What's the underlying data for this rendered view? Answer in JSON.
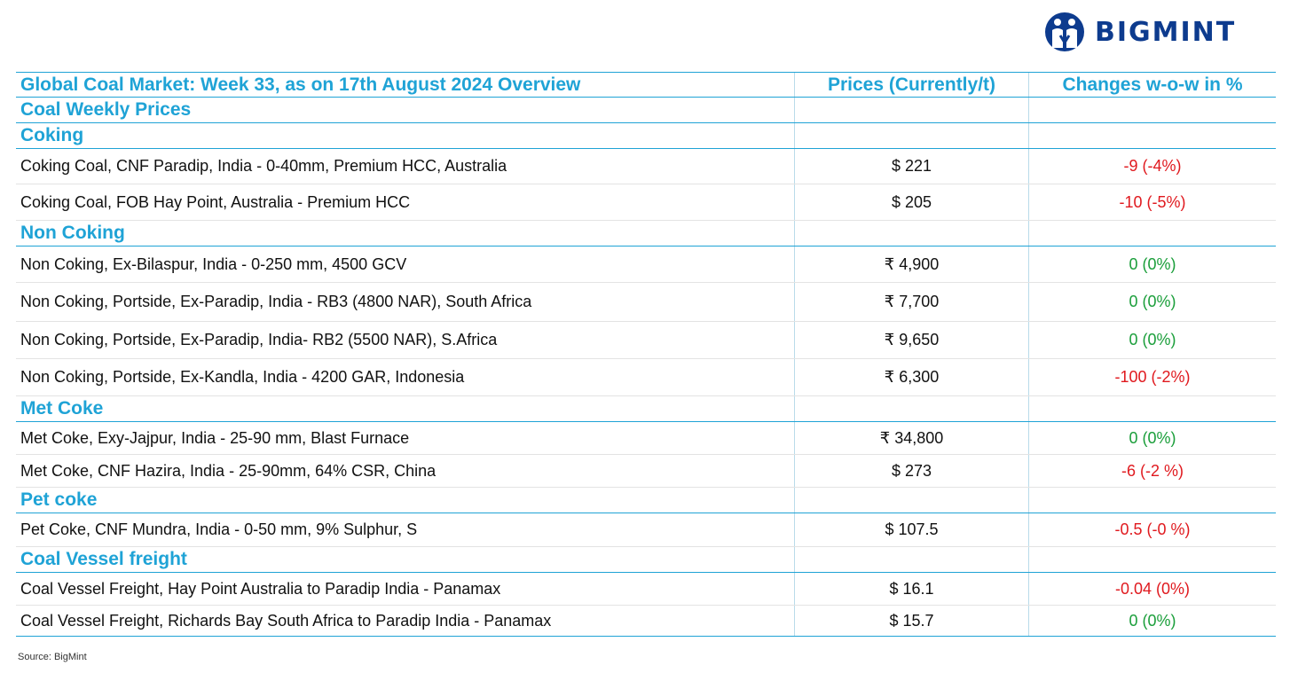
{
  "brand": {
    "name": "BIGMINT",
    "logo_icon": "bigmint-people-icon"
  },
  "table": {
    "header": {
      "title": "Global Coal Market: Week 33, as on 17th August 2024 Overview",
      "price_col": "Prices (Currently/t)",
      "change_col": "Changes w-o-w in %"
    },
    "rows": [
      {
        "kind": "section",
        "label": "Coal Weekly Prices"
      },
      {
        "kind": "section",
        "label": "Coking"
      },
      {
        "kind": "data",
        "name": "Coking Coal, CNF Paradip, India - 0-40mm, Premium HCC, Australia",
        "price": "$ 221",
        "change": "-9 (-4%)",
        "dir": "neg"
      },
      {
        "kind": "data",
        "name": "Coking Coal, FOB Hay Point, Australia - Premium HCC",
        "price": "$ 205",
        "change": "-10 (-5%)",
        "dir": "neg"
      },
      {
        "kind": "section",
        "label": "Non Coking"
      },
      {
        "kind": "data",
        "name": "Non Coking, Ex-Bilaspur, India - 0-250 mm, 4500 GCV",
        "price": "₹ 4,900",
        "change": "0 (0%)",
        "dir": "zero"
      },
      {
        "kind": "data",
        "name": "Non Coking, Portside, Ex-Paradip, India - RB3 (4800 NAR), South Africa",
        "price": "₹ 7,700",
        "change": "0 (0%)",
        "dir": "zero"
      },
      {
        "kind": "data",
        "name": "Non Coking, Portside, Ex-Paradip, India- RB2 (5500 NAR), S.Africa",
        "price": "₹ 9,650",
        "change": "0 (0%)",
        "dir": "zero"
      },
      {
        "kind": "data",
        "name": "Non Coking, Portside, Ex-Kandla, India - 4200 GAR, Indonesia",
        "price": "₹ 6,300",
        "change": "-100 (-2%)",
        "dir": "neg"
      },
      {
        "kind": "section",
        "label": "Met Coke"
      },
      {
        "kind": "data",
        "name": "Met Coke, Exy-Jajpur, India - 25-90 mm, Blast Furnace",
        "price": "₹ 34,800",
        "change": "0 (0%)",
        "dir": "zero"
      },
      {
        "kind": "data",
        "name": "Met Coke, CNF Hazira, India - 25-90mm, 64% CSR, China",
        "price": "$ 273",
        "change": "-6 (-2 %)",
        "dir": "neg"
      },
      {
        "kind": "section",
        "label": "Pet coke"
      },
      {
        "kind": "data",
        "name": "Pet Coke, CNF Mundra, India - 0-50 mm, 9% Sulphur, S",
        "price": "$ 107.5",
        "change": "-0.5 (-0 %)",
        "dir": "neg"
      },
      {
        "kind": "section",
        "label": "Coal Vessel freight"
      },
      {
        "kind": "data",
        "name": "Coal Vessel Freight, Hay Point Australia to Paradip India - Panamax",
        "price": "$ 16.1",
        "change": "-0.04 (0%)",
        "dir": "neg"
      },
      {
        "kind": "data",
        "name": "Coal Vessel Freight, Richards Bay South Africa to Paradip India - Panamax",
        "price": "$ 15.7",
        "change": "0 (0%)",
        "dir": "zero"
      }
    ]
  },
  "source": "Source: BigMint",
  "colors": {
    "accent": "#1fa3d6",
    "brand": "#0d3b8e",
    "negative": "#e0191e",
    "zero": "#1a9e3a"
  }
}
